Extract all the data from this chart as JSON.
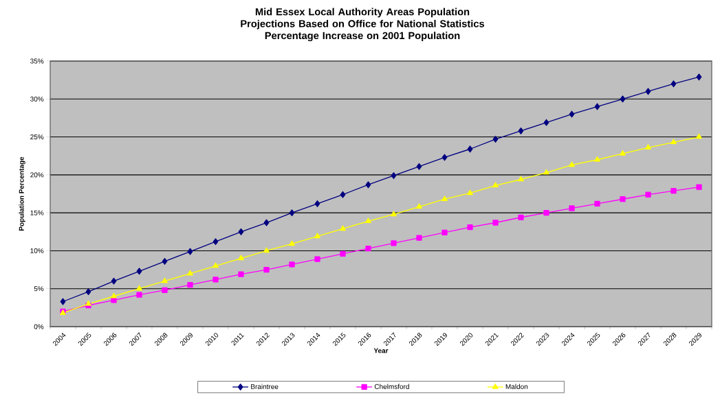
{
  "chart_data": {
    "type": "line",
    "title": "Mid Essex Local Authority Areas Population Projections Based on Office for National Statistics",
    "subtitle": "Percentage Increase on 2001 Population",
    "xlabel": "Year",
    "ylabel": "Population Percentage",
    "categories": [
      "2004",
      "2005",
      "2006",
      "2007",
      "2008",
      "2009",
      "2010",
      "2011",
      "2012",
      "2013",
      "2014",
      "2015",
      "2016",
      "2017",
      "2018",
      "2019",
      "2020",
      "2021",
      "2022",
      "2023",
      "2024",
      "2025",
      "2026",
      "2027",
      "2028",
      "2029"
    ],
    "series": [
      {
        "name": "Braintree",
        "color": "#000080",
        "marker": "diamond",
        "values": [
          3.3,
          4.6,
          6.0,
          7.3,
          8.6,
          9.9,
          11.2,
          12.5,
          13.7,
          15.0,
          16.2,
          17.4,
          18.7,
          19.9,
          21.1,
          22.3,
          23.4,
          24.7,
          25.8,
          26.9,
          28.0,
          29.0,
          30.0,
          31.0,
          32.0,
          32.9
        ]
      },
      {
        "name": "Chelmsford",
        "color": "#ff00ff",
        "marker": "square",
        "values": [
          2.0,
          2.8,
          3.5,
          4.2,
          4.8,
          5.5,
          6.2,
          6.9,
          7.5,
          8.2,
          8.9,
          9.6,
          10.3,
          11.0,
          11.7,
          12.4,
          13.1,
          13.7,
          14.4,
          15.0,
          15.6,
          16.2,
          16.8,
          17.4,
          17.9,
          18.4
        ]
      },
      {
        "name": "Maldon",
        "color": "#ffff00",
        "marker": "triangle",
        "values": [
          1.8,
          3.0,
          4.0,
          5.0,
          6.0,
          7.0,
          8.0,
          9.0,
          10.0,
          10.9,
          11.9,
          12.9,
          13.9,
          14.8,
          15.8,
          16.8,
          17.6,
          18.6,
          19.4,
          20.3,
          21.3,
          22.0,
          22.8,
          23.6,
          24.3,
          25.0
        ]
      }
    ],
    "ylim": [
      0,
      35
    ],
    "yticks": [
      {
        "value": 0,
        "label": "0%"
      },
      {
        "value": 5,
        "label": "5%"
      },
      {
        "value": 10,
        "label": "10%"
      },
      {
        "value": 15,
        "label": "15%"
      },
      {
        "value": 20,
        "label": "20%"
      },
      {
        "value": 25,
        "label": "25%"
      },
      {
        "value": 30,
        "label": "30%"
      },
      {
        "value": 35,
        "label": "35%"
      }
    ],
    "grid": "y",
    "legend": "bottom",
    "line_style": "solid"
  }
}
